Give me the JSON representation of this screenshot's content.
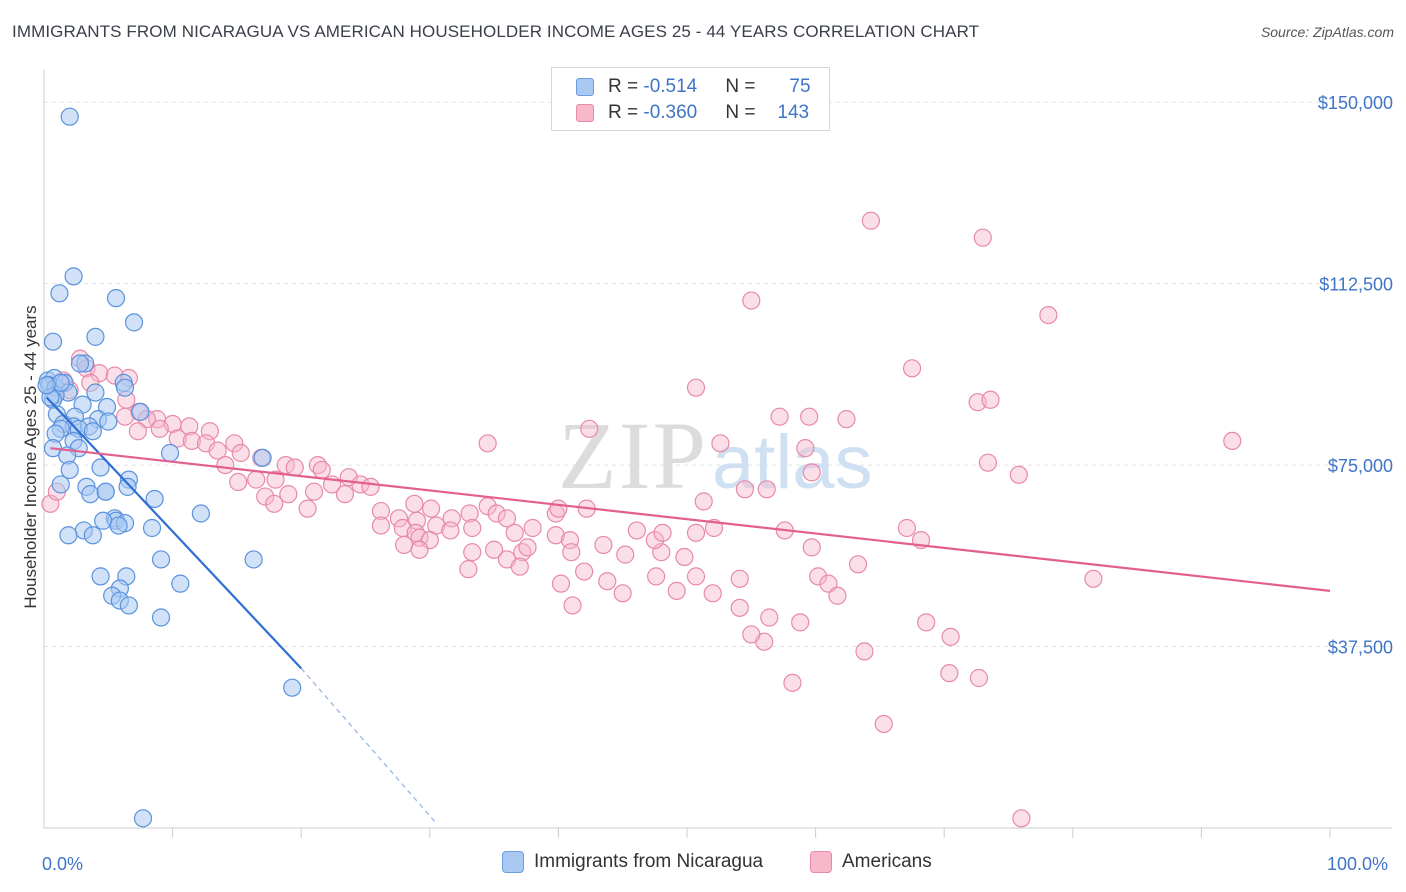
{
  "title": "IMMIGRANTS FROM NICARAGUA VS AMERICAN HOUSEHOLDER INCOME AGES 25 - 44 YEARS CORRELATION CHART",
  "source": "Source: ZipAtlas.com",
  "watermark": {
    "zip": "ZIP",
    "atlas": "atlas"
  },
  "legend": {
    "rows": [
      {
        "r_label": "R = ",
        "r_value": "-0.514",
        "n_label": "N = ",
        "n_value": "75",
        "color": "#a9c8f2",
        "stroke": "#6b9ee0"
      },
      {
        "r_label": "R = ",
        "r_value": "-0.360",
        "n_label": "N = ",
        "n_value": "143",
        "color": "#f7b8cc",
        "stroke": "#e889a8"
      }
    ]
  },
  "bottom_legend": [
    "Immigrants from Nicaragua",
    "Americans"
  ],
  "chart_data": {
    "type": "scatter",
    "title": "IMMIGRANTS FROM NICARAGUA VS AMERICAN HOUSEHOLDER INCOME AGES 25 - 44 YEARS CORRELATION CHART",
    "xlabel": "",
    "ylabel": "Householder Income Ages 25 - 44 years",
    "xlim": [
      0,
      100
    ],
    "ylim": [
      0,
      155000
    ],
    "x_tick_labels": [
      "0.0%",
      "100.0%"
    ],
    "y_ticks": [
      37500,
      75000,
      112500,
      150000
    ],
    "y_tick_labels": [
      "$37,500",
      "$75,000",
      "$112,500",
      "$150,000"
    ],
    "grid": "horizontal dashed",
    "series": [
      {
        "name": "Immigrants from Nicaragua",
        "color": "#a9c8f2",
        "stroke": "#5b93dd",
        "trend_color": "#2e6fd3",
        "trend": {
          "x0": 0.2,
          "y0": 89000,
          "x1": 20,
          "y1": 33000,
          "dash_to_x": 30.5,
          "dash_to_y": 1000
        },
        "points": [
          [
            2.0,
            147000
          ],
          [
            2.3,
            114000
          ],
          [
            1.2,
            110500
          ],
          [
            5.6,
            109500
          ],
          [
            7.0,
            104500
          ],
          [
            4.0,
            101500
          ],
          [
            0.7,
            100500
          ],
          [
            3.2,
            96000
          ],
          [
            0.3,
            92500
          ],
          [
            0.8,
            93000
          ],
          [
            0.4,
            91500
          ],
          [
            0.9,
            91000
          ],
          [
            1.6,
            92000
          ],
          [
            6.2,
            92000
          ],
          [
            6.3,
            91000
          ],
          [
            1.9,
            90000
          ],
          [
            4.0,
            90000
          ],
          [
            0.9,
            89500
          ],
          [
            0.7,
            88500
          ],
          [
            0.5,
            89000
          ],
          [
            3.0,
            87500
          ],
          [
            4.9,
            87000
          ],
          [
            7.5,
            86000
          ],
          [
            1.0,
            85500
          ],
          [
            2.4,
            85000
          ],
          [
            4.2,
            84500
          ],
          [
            5.0,
            84000
          ],
          [
            1.5,
            83500
          ],
          [
            2.3,
            83000
          ],
          [
            3.5,
            83000
          ],
          [
            1.3,
            82500
          ],
          [
            2.7,
            82500
          ],
          [
            3.8,
            82000
          ],
          [
            0.9,
            81500
          ],
          [
            2.3,
            80000
          ],
          [
            0.7,
            78500
          ],
          [
            2.7,
            78500
          ],
          [
            1.8,
            77000
          ],
          [
            9.8,
            77500
          ],
          [
            17.0,
            76500
          ],
          [
            4.4,
            74500
          ],
          [
            2.0,
            74000
          ],
          [
            6.6,
            72000
          ],
          [
            1.3,
            71000
          ],
          [
            3.3,
            70500
          ],
          [
            6.5,
            70500
          ],
          [
            4.8,
            69500
          ],
          [
            3.6,
            69000
          ],
          [
            4.8,
            69500
          ],
          [
            8.6,
            68000
          ],
          [
            12.2,
            65000
          ],
          [
            5.5,
            64000
          ],
          [
            5.6,
            63500
          ],
          [
            6.3,
            63000
          ],
          [
            4.6,
            63500
          ],
          [
            5.8,
            62500
          ],
          [
            8.4,
            62000
          ],
          [
            3.1,
            61500
          ],
          [
            1.9,
            60500
          ],
          [
            3.8,
            60500
          ],
          [
            9.1,
            55500
          ],
          [
            16.3,
            55500
          ],
          [
            4.4,
            52000
          ],
          [
            6.4,
            52000
          ],
          [
            10.6,
            50500
          ],
          [
            5.9,
            49500
          ],
          [
            5.3,
            48000
          ],
          [
            5.9,
            47000
          ],
          [
            6.6,
            46000
          ],
          [
            9.1,
            43500
          ],
          [
            19.3,
            29000
          ],
          [
            7.7,
            2000
          ],
          [
            1.3,
            92000
          ],
          [
            0.2,
            91500
          ],
          [
            2.8,
            96000
          ]
        ]
      },
      {
        "name": "Americans",
        "color": "#f7b8cc",
        "stroke": "#e889a8",
        "trend_color": "#e25f8f",
        "trend": {
          "x0": 0.5,
          "y0": 78500,
          "x1": 100,
          "y1": 49000
        },
        "points": [
          [
            2.8,
            97000
          ],
          [
            3.3,
            95000
          ],
          [
            4.3,
            94000
          ],
          [
            5.5,
            93500
          ],
          [
            6.6,
            93000
          ],
          [
            1.5,
            92500
          ],
          [
            3.6,
            92000
          ],
          [
            2.0,
            90500
          ],
          [
            6.4,
            88500
          ],
          [
            7.4,
            86000
          ],
          [
            6.3,
            85000
          ],
          [
            8.8,
            84500
          ],
          [
            8.0,
            84500
          ],
          [
            10.0,
            83500
          ],
          [
            11.3,
            83000
          ],
          [
            7.3,
            82000
          ],
          [
            9.0,
            82500
          ],
          [
            12.9,
            82000
          ],
          [
            10.4,
            80500
          ],
          [
            11.5,
            80000
          ],
          [
            12.6,
            79500
          ],
          [
            14.8,
            79500
          ],
          [
            15.3,
            77500
          ],
          [
            13.5,
            78000
          ],
          [
            14.1,
            75000
          ],
          [
            16.9,
            76500
          ],
          [
            18.8,
            75000
          ],
          [
            19.5,
            74500
          ],
          [
            21.3,
            75000
          ],
          [
            21.6,
            74000
          ],
          [
            23.7,
            72500
          ],
          [
            24.6,
            71000
          ],
          [
            22.4,
            71000
          ],
          [
            15.1,
            71500
          ],
          [
            16.5,
            72000
          ],
          [
            18.0,
            72000
          ],
          [
            19.0,
            69000
          ],
          [
            17.2,
            68500
          ],
          [
            21.0,
            69500
          ],
          [
            23.4,
            69000
          ],
          [
            25.4,
            70500
          ],
          [
            17.9,
            67000
          ],
          [
            20.5,
            66000
          ],
          [
            26.2,
            65500
          ],
          [
            28.8,
            67000
          ],
          [
            30.1,
            66000
          ],
          [
            27.6,
            64000
          ],
          [
            29.0,
            63500
          ],
          [
            31.7,
            64000
          ],
          [
            33.1,
            65000
          ],
          [
            34.5,
            66500
          ],
          [
            35.2,
            65000
          ],
          [
            36.0,
            64000
          ],
          [
            39.8,
            65000
          ],
          [
            40.0,
            66000
          ],
          [
            42.2,
            66000
          ],
          [
            30.5,
            62500
          ],
          [
            31.6,
            61500
          ],
          [
            33.3,
            62000
          ],
          [
            36.6,
            61000
          ],
          [
            38.0,
            62000
          ],
          [
            26.2,
            62500
          ],
          [
            27.9,
            62000
          ],
          [
            28.9,
            61000
          ],
          [
            29.2,
            60000
          ],
          [
            30.0,
            59500
          ],
          [
            28.0,
            58500
          ],
          [
            29.2,
            57500
          ],
          [
            33.3,
            57000
          ],
          [
            35.0,
            57500
          ],
          [
            37.2,
            57000
          ],
          [
            37.6,
            58000
          ],
          [
            39.8,
            60500
          ],
          [
            40.9,
            59500
          ],
          [
            43.5,
            58500
          ],
          [
            45.2,
            56500
          ],
          [
            46.1,
            61500
          ],
          [
            48.0,
            57000
          ],
          [
            49.8,
            56000
          ],
          [
            47.5,
            59500
          ],
          [
            48.1,
            61000
          ],
          [
            50.7,
            61000
          ],
          [
            52.1,
            62000
          ],
          [
            41.0,
            57000
          ],
          [
            42.0,
            53000
          ],
          [
            43.8,
            51000
          ],
          [
            45.0,
            48500
          ],
          [
            40.2,
            50500
          ],
          [
            41.1,
            46000
          ],
          [
            33.0,
            53500
          ],
          [
            36.0,
            55500
          ],
          [
            37.0,
            54000
          ],
          [
            47.6,
            52000
          ],
          [
            49.2,
            49000
          ],
          [
            50.7,
            52000
          ],
          [
            52.0,
            48500
          ],
          [
            54.1,
            45500
          ],
          [
            56.4,
            43500
          ],
          [
            56.0,
            38500
          ],
          [
            55.0,
            40000
          ],
          [
            54.1,
            51500
          ],
          [
            57.6,
            61500
          ],
          [
            59.7,
            58000
          ],
          [
            60.2,
            52000
          ],
          [
            61.0,
            50500
          ],
          [
            61.7,
            48000
          ],
          [
            63.3,
            54500
          ],
          [
            63.8,
            36500
          ],
          [
            67.1,
            62000
          ],
          [
            68.2,
            59500
          ],
          [
            68.6,
            42500
          ],
          [
            70.5,
            39500
          ],
          [
            70.4,
            32000
          ],
          [
            72.7,
            31000
          ],
          [
            64.3,
            125500
          ],
          [
            73.0,
            122000
          ],
          [
            55.0,
            109000
          ],
          [
            78.1,
            106000
          ],
          [
            67.5,
            95000
          ],
          [
            72.6,
            88000
          ],
          [
            73.6,
            88500
          ],
          [
            50.7,
            91000
          ],
          [
            59.5,
            85000
          ],
          [
            57.2,
            85000
          ],
          [
            52.6,
            79500
          ],
          [
            62.4,
            84500
          ],
          [
            59.2,
            78500
          ],
          [
            73.4,
            75500
          ],
          [
            75.8,
            73000
          ],
          [
            92.4,
            80000
          ],
          [
            54.5,
            70000
          ],
          [
            56.2,
            70000
          ],
          [
            51.3,
            67500
          ],
          [
            59.7,
            73500
          ],
          [
            81.6,
            51500
          ],
          [
            76.0,
            2000
          ],
          [
            58.2,
            30000
          ],
          [
            65.3,
            21500
          ],
          [
            34.5,
            79500
          ],
          [
            42.4,
            82500
          ],
          [
            0.5,
            67000
          ],
          [
            1.0,
            69500
          ],
          [
            58.8,
            42500
          ]
        ]
      }
    ]
  }
}
